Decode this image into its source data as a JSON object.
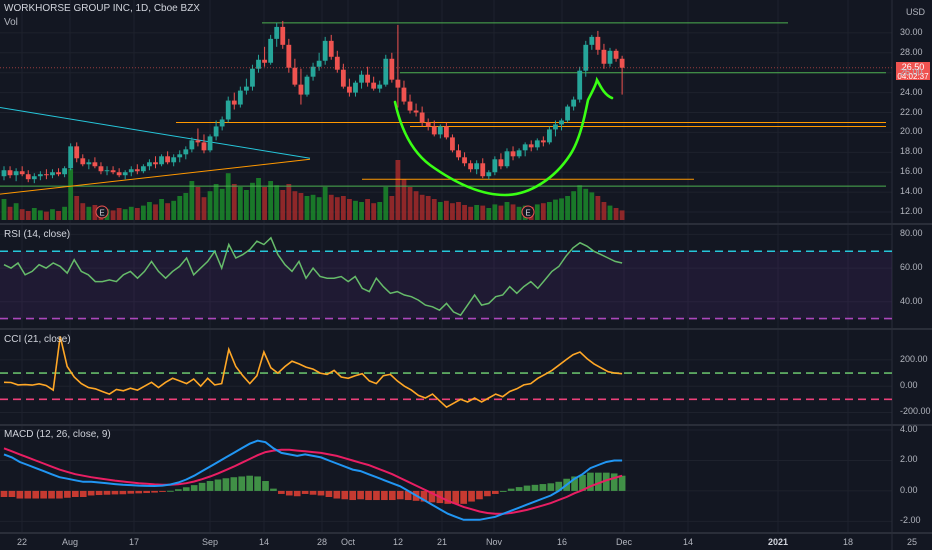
{
  "title": "WORKHORSE GROUP INC, 1D, Cboe BZX",
  "currency": "USD",
  "volume_label": "Vol",
  "last_price": "26.50",
  "countdown": "04:02:37",
  "earnings_marker": "E",
  "x_labels": [
    "22",
    "Aug",
    "17",
    "Sep",
    "14",
    "28",
    "Oct",
    "12",
    "21",
    "Nov",
    "16",
    "Dec",
    "14",
    "2021",
    "18",
    "25"
  ],
  "colors": {
    "bg": "#131722",
    "up": "#26a69a",
    "down": "#ef5350",
    "vol_up": "#1b8a2a",
    "vol_down": "#a52a2a",
    "annotation": "#39ff14"
  },
  "chart_data": [
    {
      "pane": "price",
      "type": "candlestick",
      "ylim": [
        11,
        32.5
      ],
      "y_ticks": [
        "30.00",
        "28.00",
        "26.00",
        "24.00",
        "22.00",
        "20.00",
        "18.00",
        "16.00",
        "14.00",
        "12.00"
      ],
      "candles": [
        [
          15.6,
          16.6,
          15.2,
          16.2
        ],
        [
          16.2,
          16.6,
          15.4,
          15.7
        ],
        [
          15.7,
          16.4,
          15.1,
          16.1
        ],
        [
          16.1,
          16.6,
          15.6,
          15.8
        ],
        [
          15.8,
          16.2,
          15.0,
          15.3
        ],
        [
          15.3,
          15.9,
          14.9,
          15.6
        ],
        [
          15.6,
          16.1,
          15.2,
          15.8
        ],
        [
          15.8,
          16.3,
          15.3,
          15.7
        ],
        [
          15.7,
          16.3,
          15.4,
          16.0
        ],
        [
          16.0,
          16.4,
          15.6,
          15.8
        ],
        [
          15.8,
          16.6,
          15.5,
          16.4
        ],
        [
          16.4,
          18.9,
          16.2,
          18.6
        ],
        [
          18.6,
          19.0,
          17.0,
          17.4
        ],
        [
          17.4,
          17.8,
          16.6,
          16.8
        ],
        [
          16.8,
          17.3,
          16.3,
          17.0
        ],
        [
          17.0,
          17.5,
          16.4,
          16.6
        ],
        [
          16.6,
          17.0,
          15.8,
          16.1
        ],
        [
          16.1,
          16.6,
          15.7,
          16.2
        ],
        [
          16.2,
          16.6,
          15.8,
          16.0
        ],
        [
          16.0,
          16.4,
          15.5,
          15.7
        ],
        [
          15.7,
          16.2,
          15.3,
          16.0
        ],
        [
          16.0,
          16.6,
          15.6,
          16.3
        ],
        [
          16.3,
          16.8,
          15.8,
          16.1
        ],
        [
          16.1,
          16.8,
          15.9,
          16.6
        ],
        [
          16.6,
          17.3,
          16.2,
          17.0
        ],
        [
          17.0,
          17.6,
          16.4,
          16.8
        ],
        [
          16.8,
          17.8,
          16.6,
          17.6
        ],
        [
          17.6,
          18.1,
          16.8,
          17.0
        ],
        [
          17.0,
          17.8,
          16.6,
          17.5
        ],
        [
          17.5,
          18.2,
          17.0,
          17.8
        ],
        [
          17.8,
          18.6,
          17.3,
          18.3
        ],
        [
          18.3,
          19.5,
          18.0,
          19.2
        ],
        [
          19.2,
          20.4,
          18.6,
          19.0
        ],
        [
          19.0,
          19.8,
          17.9,
          18.2
        ],
        [
          18.2,
          19.8,
          18.0,
          19.6
        ],
        [
          19.6,
          21.2,
          19.2,
          20.6
        ],
        [
          20.6,
          21.6,
          20.2,
          21.3
        ],
        [
          21.3,
          23.6,
          21.0,
          23.2
        ],
        [
          23.2,
          24.0,
          22.3,
          22.8
        ],
        [
          22.8,
          24.6,
          22.5,
          24.2
        ],
        [
          24.2,
          25.4,
          23.8,
          24.6
        ],
        [
          24.6,
          26.8,
          24.2,
          26.4
        ],
        [
          26.4,
          27.8,
          26.0,
          27.3
        ],
        [
          27.3,
          28.6,
          26.6,
          27.0
        ],
        [
          27.0,
          29.8,
          26.8,
          29.4
        ],
        [
          29.4,
          31.0,
          28.6,
          30.6
        ],
        [
          30.6,
          31.2,
          28.4,
          28.8
        ],
        [
          28.8,
          29.4,
          26.0,
          26.5
        ],
        [
          26.5,
          27.4,
          24.6,
          24.8
        ],
        [
          24.8,
          26.4,
          22.8,
          23.8
        ],
        [
          23.8,
          25.8,
          23.6,
          25.6
        ],
        [
          25.6,
          27.0,
          25.2,
          26.6
        ],
        [
          26.6,
          28.0,
          26.2,
          27.2
        ],
        [
          27.2,
          29.6,
          26.8,
          29.2
        ],
        [
          29.2,
          29.8,
          27.3,
          27.6
        ],
        [
          27.6,
          28.2,
          26.0,
          26.3
        ],
        [
          26.3,
          26.9,
          24.4,
          24.6
        ],
        [
          24.6,
          25.4,
          23.6,
          24.0
        ],
        [
          24.0,
          25.2,
          23.6,
          25.0
        ],
        [
          25.0,
          26.2,
          24.4,
          25.8
        ],
        [
          25.8,
          26.6,
          24.6,
          25.0
        ],
        [
          25.0,
          25.6,
          24.2,
          24.4
        ],
        [
          24.4,
          25.2,
          24.0,
          24.8
        ],
        [
          24.8,
          27.8,
          24.6,
          27.4
        ],
        [
          27.4,
          28.0,
          25.0,
          25.3
        ],
        [
          25.3,
          30.8,
          22.5,
          24.5
        ],
        [
          24.5,
          25.2,
          22.8,
          23.1
        ],
        [
          23.1,
          23.8,
          21.9,
          22.2
        ],
        [
          22.2,
          22.9,
          21.6,
          22.0
        ],
        [
          22.0,
          22.6,
          20.6,
          21.0
        ],
        [
          21.0,
          21.4,
          20.2,
          20.6
        ],
        [
          20.6,
          21.2,
          19.6,
          19.8
        ],
        [
          19.8,
          20.8,
          19.4,
          20.6
        ],
        [
          20.6,
          21.0,
          19.3,
          19.5
        ],
        [
          19.5,
          19.8,
          18.0,
          18.2
        ],
        [
          18.2,
          18.8,
          17.2,
          17.5
        ],
        [
          17.5,
          18.0,
          16.6,
          16.9
        ],
        [
          16.9,
          17.2,
          16.0,
          16.3
        ],
        [
          16.3,
          17.2,
          15.8,
          16.9
        ],
        [
          16.9,
          17.4,
          15.4,
          15.6
        ],
        [
          15.6,
          16.2,
          15.3,
          16.0
        ],
        [
          16.0,
          17.6,
          15.7,
          17.3
        ],
        [
          17.3,
          17.9,
          16.3,
          16.6
        ],
        [
          16.6,
          18.4,
          16.4,
          18.1
        ],
        [
          18.1,
          18.6,
          17.2,
          17.6
        ],
        [
          17.6,
          18.4,
          17.4,
          18.2
        ],
        [
          18.2,
          19.0,
          17.6,
          18.8
        ],
        [
          18.8,
          19.2,
          18.1,
          18.5
        ],
        [
          18.5,
          19.4,
          18.2,
          19.2
        ],
        [
          19.2,
          19.6,
          18.6,
          19.0
        ],
        [
          19.0,
          20.6,
          18.8,
          20.3
        ],
        [
          20.3,
          21.2,
          19.6,
          20.8
        ],
        [
          20.8,
          21.4,
          20.2,
          21.2
        ],
        [
          21.2,
          22.8,
          21.0,
          22.6
        ],
        [
          22.6,
          23.6,
          22.2,
          23.3
        ],
        [
          23.3,
          26.6,
          23.0,
          26.2
        ],
        [
          26.2,
          29.2,
          25.6,
          28.8
        ],
        [
          28.8,
          29.8,
          28.3,
          29.6
        ],
        [
          29.6,
          30.2,
          27.8,
          28.3
        ],
        [
          28.3,
          28.9,
          26.4,
          26.9
        ],
        [
          26.9,
          28.5,
          26.6,
          28.2
        ],
        [
          28.2,
          28.4,
          27.1,
          27.4
        ],
        [
          27.4,
          27.7,
          23.8,
          26.5
        ]
      ],
      "volume_relative": [
        35,
        22,
        28,
        18,
        15,
        20,
        16,
        14,
        18,
        15,
        22,
        85,
        40,
        28,
        22,
        25,
        20,
        18,
        16,
        20,
        18,
        22,
        20,
        24,
        30,
        26,
        35,
        28,
        32,
        40,
        45,
        65,
        55,
        38,
        48,
        60,
        52,
        78,
        60,
        55,
        50,
        62,
        70,
        55,
        65,
        58,
        50,
        60,
        48,
        45,
        40,
        42,
        38,
        55,
        42,
        38,
        40,
        35,
        32,
        30,
        35,
        28,
        30,
        55,
        40,
        100,
        68,
        55,
        48,
        42,
        40,
        35,
        30,
        32,
        28,
        30,
        25,
        22,
        25,
        24,
        20,
        26,
        24,
        30,
        26,
        22,
        24,
        22,
        26,
        28,
        30,
        34,
        36,
        40,
        48,
        58,
        52,
        46,
        40,
        30,
        24,
        20,
        16
      ],
      "horizontal_lines": [
        {
          "price": 31.0,
          "color": "#4caf50"
        },
        {
          "price": 26.0,
          "color": "#4caf50"
        },
        {
          "price": 21.0,
          "color": "#ff9800"
        },
        {
          "price": 20.6,
          "color": "#ff9800"
        },
        {
          "price": 15.3,
          "color": "#ff9800"
        },
        {
          "price": 14.6,
          "color": "#4caf50"
        }
      ],
      "trend_lines": [
        {
          "from": [
            0,
            22.5
          ],
          "to": [
            50,
            17.4
          ],
          "color": "#26c6da"
        },
        {
          "from": [
            0,
            13.8
          ],
          "to": [
            50,
            17.3
          ],
          "color": "#ff9800"
        }
      ]
    },
    {
      "pane": "RSI (14, close)",
      "type": "line",
      "ylim": [
        25,
        85
      ],
      "y_ticks": [
        "80.00",
        "60.00",
        "40.00"
      ],
      "levels": [
        70,
        30
      ],
      "values": [
        62,
        60,
        63,
        56,
        58,
        62,
        60,
        63,
        61,
        57,
        65,
        58,
        56,
        52,
        52,
        53,
        52,
        56,
        58,
        54,
        58,
        64,
        58,
        54,
        58,
        61,
        66,
        56,
        60,
        64,
        70,
        60,
        74,
        66,
        68,
        71,
        76,
        74,
        78,
        68,
        62,
        58,
        64,
        54,
        60,
        55,
        54,
        54,
        55,
        52,
        55,
        48,
        46,
        54,
        49,
        45,
        46,
        44,
        43,
        41,
        38,
        37,
        35,
        39,
        34,
        32,
        38,
        44,
        38,
        39,
        43,
        44,
        49,
        45,
        49,
        52,
        48,
        53,
        58,
        61,
        67,
        72,
        75,
        73,
        70,
        68,
        66,
        64,
        63
      ]
    },
    {
      "pane": "CCI (21, close)",
      "type": "line",
      "ylim": [
        -280,
        420
      ],
      "y_ticks": [
        "200.00",
        "0.00",
        "-200.00"
      ],
      "levels": [
        100,
        -100
      ],
      "values": [
        30,
        28,
        10,
        12,
        8,
        18,
        5,
        -30,
        380,
        150,
        70,
        20,
        -10,
        -20,
        -40,
        -60,
        -25,
        -35,
        -15,
        -30,
        0,
        30,
        -10,
        30,
        60,
        40,
        20,
        55,
        0,
        60,
        10,
        20,
        280,
        150,
        80,
        20,
        80,
        260,
        140,
        100,
        150,
        190,
        170,
        145,
        130,
        100,
        90,
        120,
        70,
        60,
        80,
        95,
        40,
        20,
        80,
        90,
        40,
        0,
        -30,
        -70,
        -90,
        -60,
        -110,
        -160,
        -130,
        -100,
        -120,
        -90,
        -120,
        -90,
        -60,
        -80,
        -40,
        -20,
        10,
        20,
        60,
        90,
        120,
        160,
        200,
        240,
        260,
        210,
        170,
        140,
        110,
        100,
        95
      ]
    },
    {
      "pane": "MACD (12, 26, close, 9)",
      "type": "line+histogram",
      "ylim": [
        -2.7,
        4.2
      ],
      "y_ticks": [
        "4.00",
        "2.00",
        "0.00",
        "-2.00"
      ],
      "series": [
        {
          "name": "MACD",
          "color": "#2196f3",
          "values": [
            2.4,
            2.2,
            1.9,
            1.7,
            1.5,
            1.3,
            1.1,
            0.9,
            0.8,
            0.7,
            0.6,
            0.6,
            0.55,
            0.5,
            0.45,
            0.4,
            0.38,
            0.35,
            0.33,
            0.32,
            0.35,
            0.42,
            0.55,
            0.75,
            1.0,
            1.3,
            1.6,
            1.9,
            2.2,
            2.5,
            2.8,
            3.1,
            3.3,
            3.2,
            2.8,
            2.5,
            2.4,
            2.3,
            2.4,
            2.3,
            2.2,
            2.0,
            1.8,
            1.6,
            1.4,
            1.3,
            1.1,
            0.9,
            0.7,
            0.5,
            0.3,
            0.0,
            -0.3,
            -0.6,
            -0.9,
            -1.2,
            -1.5,
            -1.7,
            -1.9,
            -1.9,
            -1.9,
            -1.8,
            -1.7,
            -1.5,
            -1.3,
            -1.1,
            -0.9,
            -0.7,
            -0.5,
            -0.3,
            0.0,
            0.4,
            0.8,
            1.1,
            1.5,
            1.7,
            1.9,
            2.0,
            2.0
          ]
        },
        {
          "name": "Signal",
          "color": "#e91e63",
          "values": [
            2.8,
            2.6,
            2.4,
            2.2,
            2.0,
            1.8,
            1.6,
            1.4,
            1.25,
            1.1,
            1.0,
            0.9,
            0.82,
            0.75,
            0.68,
            0.62,
            0.56,
            0.51,
            0.47,
            0.43,
            0.41,
            0.41,
            0.44,
            0.51,
            0.62,
            0.77,
            0.95,
            1.15,
            1.37,
            1.6,
            1.85,
            2.1,
            2.35,
            2.55,
            2.65,
            2.7,
            2.7,
            2.65,
            2.6,
            2.55,
            2.5,
            2.4,
            2.3,
            2.15,
            2.0,
            1.85,
            1.7,
            1.5,
            1.3,
            1.1,
            0.85,
            0.6,
            0.35,
            0.1,
            -0.15,
            -0.4,
            -0.65,
            -0.85,
            -1.05,
            -1.2,
            -1.35,
            -1.45,
            -1.5,
            -1.5,
            -1.45,
            -1.35,
            -1.25,
            -1.1,
            -0.95,
            -0.8,
            -0.6,
            -0.4,
            -0.15,
            0.05,
            0.3,
            0.5,
            0.7,
            0.85,
            1.0
          ]
        }
      ]
    }
  ]
}
